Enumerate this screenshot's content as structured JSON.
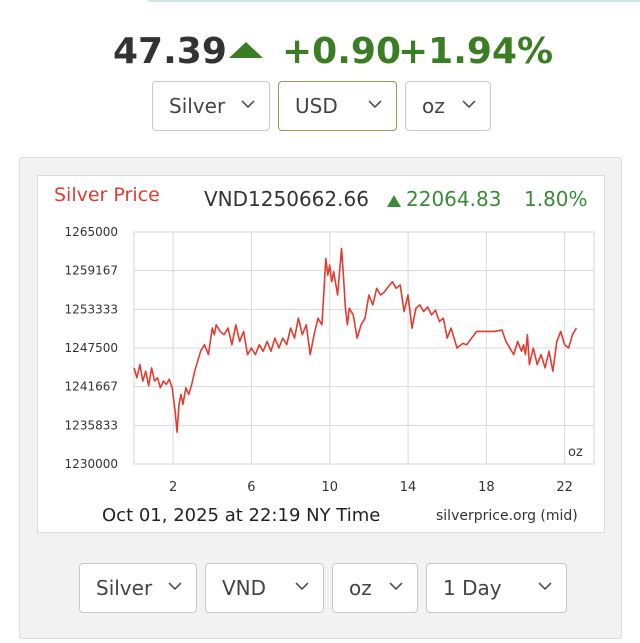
{
  "quote": {
    "price": "47.39",
    "change": "+0.90",
    "change_pct": "+1.94%",
    "direction": "up",
    "up_color": "#3a7d23"
  },
  "top_selectors": [
    {
      "name": "metal-select",
      "value": "Silver"
    },
    {
      "name": "currency-select",
      "value": "USD"
    },
    {
      "name": "unit-select",
      "value": "oz"
    }
  ],
  "bottom_selectors": [
    {
      "name": "metal-select",
      "value": "Silver"
    },
    {
      "name": "currency-select",
      "value": "VND"
    },
    {
      "name": "unit-select",
      "value": "oz"
    },
    {
      "name": "range-select",
      "value": "1 Day"
    }
  ],
  "chart_header": {
    "title": "Silver Price",
    "price": "VND1250662.66",
    "change": "22064.83",
    "change_pct": "1.80%",
    "title_color": "#e03c31",
    "change_color": "#3a8a3a"
  },
  "chart_footer": {
    "timestamp": "Oct 01, 2025 at 22:19 NY Time",
    "source": "silverprice.org (mid)"
  },
  "chart_data": {
    "type": "line",
    "title": "Silver Price",
    "unit_label": "oz",
    "line_color": "#e03c31",
    "grid": true,
    "xlim": [
      0,
      23.5
    ],
    "ylim": [
      1230000,
      1265000
    ],
    "x_ticks": [
      2,
      6,
      10,
      14,
      18,
      22
    ],
    "y_ticks": [
      1230000,
      1235833,
      1241667,
      1247500,
      1253333,
      1259167,
      1265000
    ],
    "series": [
      {
        "x": [
          0.0,
          0.15,
          0.3,
          0.45,
          0.6,
          0.75,
          0.9,
          1.05,
          1.2,
          1.35,
          1.5,
          1.65,
          1.8,
          1.95,
          2.1,
          2.2,
          2.3,
          2.4,
          2.5,
          2.65,
          2.8,
          2.95,
          3.1,
          3.25,
          3.4,
          3.6,
          3.8,
          4.0,
          4.1,
          4.2,
          4.4,
          4.6,
          4.8,
          5.0,
          5.2,
          5.4,
          5.6,
          5.8,
          6.0,
          6.2,
          6.4,
          6.6,
          6.8,
          7.0,
          7.2,
          7.4,
          7.6,
          7.8,
          8.0,
          8.2,
          8.4,
          8.6,
          8.8,
          9.0,
          9.2,
          9.4,
          9.6,
          9.7,
          9.8,
          9.9,
          10.0,
          10.1,
          10.2,
          10.4,
          10.6,
          10.7,
          10.8,
          10.9,
          11.0,
          11.2,
          11.4,
          11.6,
          11.8,
          12.0,
          12.2,
          12.4,
          12.6,
          12.8,
          13.0,
          13.2,
          13.4,
          13.6,
          13.8,
          14.0,
          14.2,
          14.4,
          14.6,
          14.8,
          15.0,
          15.2,
          15.4,
          15.6,
          15.8,
          16.0,
          16.2,
          16.5,
          16.8,
          17.0,
          17.5,
          18.0,
          18.4,
          18.8,
          19.0,
          19.2,
          19.4,
          19.6,
          19.8,
          19.9,
          20.0,
          20.1,
          20.2,
          20.4,
          20.6,
          20.8,
          21.0,
          21.2,
          21.4,
          21.6,
          21.8,
          22.0,
          22.2,
          22.4,
          22.6
        ],
        "y": [
          1244500,
          1243000,
          1245000,
          1242500,
          1244000,
          1241800,
          1244500,
          1242500,
          1243000,
          1241500,
          1242500,
          1242000,
          1242800,
          1241500,
          1238000,
          1234800,
          1239000,
          1240500,
          1239000,
          1241500,
          1240500,
          1242000,
          1244000,
          1245500,
          1247000,
          1248000,
          1246500,
          1250500,
          1249500,
          1251000,
          1250000,
          1249500,
          1250500,
          1248000,
          1251000,
          1248500,
          1250000,
          1246500,
          1247500,
          1246500,
          1248000,
          1247000,
          1248500,
          1247000,
          1249000,
          1247500,
          1249000,
          1248000,
          1250500,
          1249000,
          1252000,
          1249500,
          1251000,
          1246500,
          1249500,
          1252000,
          1251000,
          1256000,
          1261000,
          1258500,
          1260000,
          1257500,
          1259000,
          1255500,
          1262500,
          1258500,
          1253500,
          1251000,
          1253500,
          1252500,
          1249000,
          1251000,
          1252000,
          1255500,
          1254000,
          1256500,
          1255500,
          1256000,
          1256800,
          1257500,
          1256500,
          1257000,
          1253000,
          1255500,
          1250500,
          1253500,
          1254000,
          1253000,
          1253700,
          1252500,
          1253200,
          1251500,
          1252000,
          1249000,
          1250500,
          1247500,
          1248200,
          1248000,
          1250000,
          1250000,
          1250000,
          1250200,
          1248500,
          1247500,
          1246500,
          1248500,
          1247000,
          1248000,
          1246500,
          1249500,
          1245000,
          1247500,
          1245000,
          1246500,
          1244500,
          1247000,
          1244000,
          1248500,
          1250000,
          1248000,
          1247500,
          1249500,
          1250500
        ]
      }
    ]
  }
}
